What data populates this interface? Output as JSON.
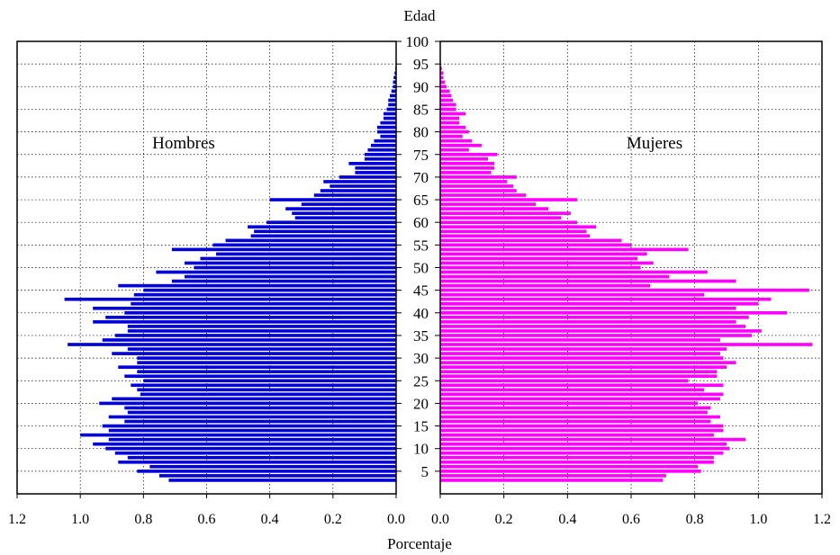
{
  "chart_data": {
    "type": "bar",
    "title": "Edad",
    "xlabel": "Porcentaje",
    "ylabel": "Edad",
    "orientation": "horizontal",
    "layout": "population-pyramid",
    "age_range": [
      0,
      100
    ],
    "age_ticks": [
      "5",
      "10",
      "15",
      "20",
      "25",
      "30",
      "35",
      "40",
      "45",
      "50",
      "55",
      "60",
      "65",
      "70",
      "75",
      "80",
      "85",
      "90",
      "95",
      "100"
    ],
    "grid": true,
    "left_panel": {
      "label": "Hombres",
      "xlim": [
        1.2,
        0.0
      ],
      "ticks": [
        "1.2",
        "1.0",
        "0.8",
        "0.6",
        "0.4",
        "0.2",
        "0.0"
      ],
      "color": "#0000d8"
    },
    "right_panel": {
      "label": "Mujeres",
      "xlim": [
        0.0,
        1.2
      ],
      "ticks": [
        "0.0",
        "0.2",
        "0.4",
        "0.6",
        "0.8",
        "1.0",
        "1.2"
      ],
      "color": "#ff00ff"
    },
    "ages": [
      3,
      4,
      5,
      6,
      7,
      8,
      9,
      10,
      11,
      12,
      13,
      14,
      15,
      16,
      17,
      18,
      19,
      20,
      21,
      22,
      23,
      24,
      25,
      26,
      27,
      28,
      29,
      30,
      31,
      32,
      33,
      34,
      35,
      36,
      37,
      38,
      39,
      40,
      41,
      42,
      43,
      44,
      45,
      46,
      47,
      48,
      49,
      50,
      51,
      52,
      53,
      54,
      55,
      56,
      57,
      58,
      59,
      60,
      61,
      62,
      63,
      64,
      65,
      66,
      67,
      68,
      69,
      70,
      71,
      72,
      73,
      74,
      75,
      76,
      77,
      78,
      79,
      80,
      81,
      82,
      83,
      84,
      85,
      86,
      87,
      88,
      89,
      90,
      91,
      92,
      93,
      94
    ],
    "series": [
      {
        "name": "Hombres",
        "values": [
          0.72,
          0.75,
          0.82,
          0.78,
          0.88,
          0.85,
          0.89,
          0.92,
          0.96,
          0.91,
          1.0,
          0.91,
          0.93,
          0.86,
          0.91,
          0.85,
          0.86,
          0.94,
          0.9,
          0.81,
          0.82,
          0.84,
          0.8,
          0.86,
          0.82,
          0.88,
          0.82,
          0.82,
          0.9,
          0.85,
          1.04,
          0.93,
          0.89,
          0.85,
          0.85,
          0.96,
          0.92,
          0.86,
          0.96,
          0.84,
          1.05,
          0.83,
          0.8,
          0.88,
          0.71,
          0.67,
          0.76,
          0.64,
          0.67,
          0.62,
          0.57,
          0.71,
          0.58,
          0.54,
          0.46,
          0.45,
          0.47,
          0.41,
          0.32,
          0.33,
          0.35,
          0.3,
          0.4,
          0.26,
          0.24,
          0.21,
          0.23,
          0.18,
          0.13,
          0.13,
          0.15,
          0.1,
          0.1,
          0.09,
          0.08,
          0.07,
          0.05,
          0.06,
          0.06,
          0.05,
          0.04,
          0.04,
          0.03,
          0.025,
          0.025,
          0.02,
          0.015,
          0.01,
          0.01,
          0.008,
          0.005,
          0.003
        ]
      },
      {
        "name": "Mujeres",
        "values": [
          0.7,
          0.71,
          0.82,
          0.81,
          0.86,
          0.86,
          0.89,
          0.91,
          0.9,
          0.96,
          0.86,
          0.89,
          0.89,
          0.85,
          0.88,
          0.84,
          0.85,
          0.81,
          0.88,
          0.89,
          0.83,
          0.89,
          0.78,
          0.87,
          0.87,
          0.9,
          0.93,
          0.89,
          0.88,
          0.9,
          1.17,
          0.88,
          0.98,
          1.01,
          0.96,
          0.93,
          0.97,
          1.09,
          0.93,
          1.0,
          1.04,
          0.83,
          1.16,
          0.66,
          0.93,
          0.72,
          0.84,
          0.63,
          0.67,
          0.62,
          0.65,
          0.78,
          0.6,
          0.57,
          0.47,
          0.46,
          0.49,
          0.43,
          0.38,
          0.41,
          0.34,
          0.3,
          0.43,
          0.27,
          0.24,
          0.23,
          0.21,
          0.24,
          0.16,
          0.17,
          0.17,
          0.15,
          0.18,
          0.09,
          0.13,
          0.1,
          0.07,
          0.09,
          0.08,
          0.06,
          0.06,
          0.08,
          0.05,
          0.05,
          0.04,
          0.035,
          0.03,
          0.02,
          0.015,
          0.01,
          0.01,
          0.005
        ]
      }
    ]
  }
}
